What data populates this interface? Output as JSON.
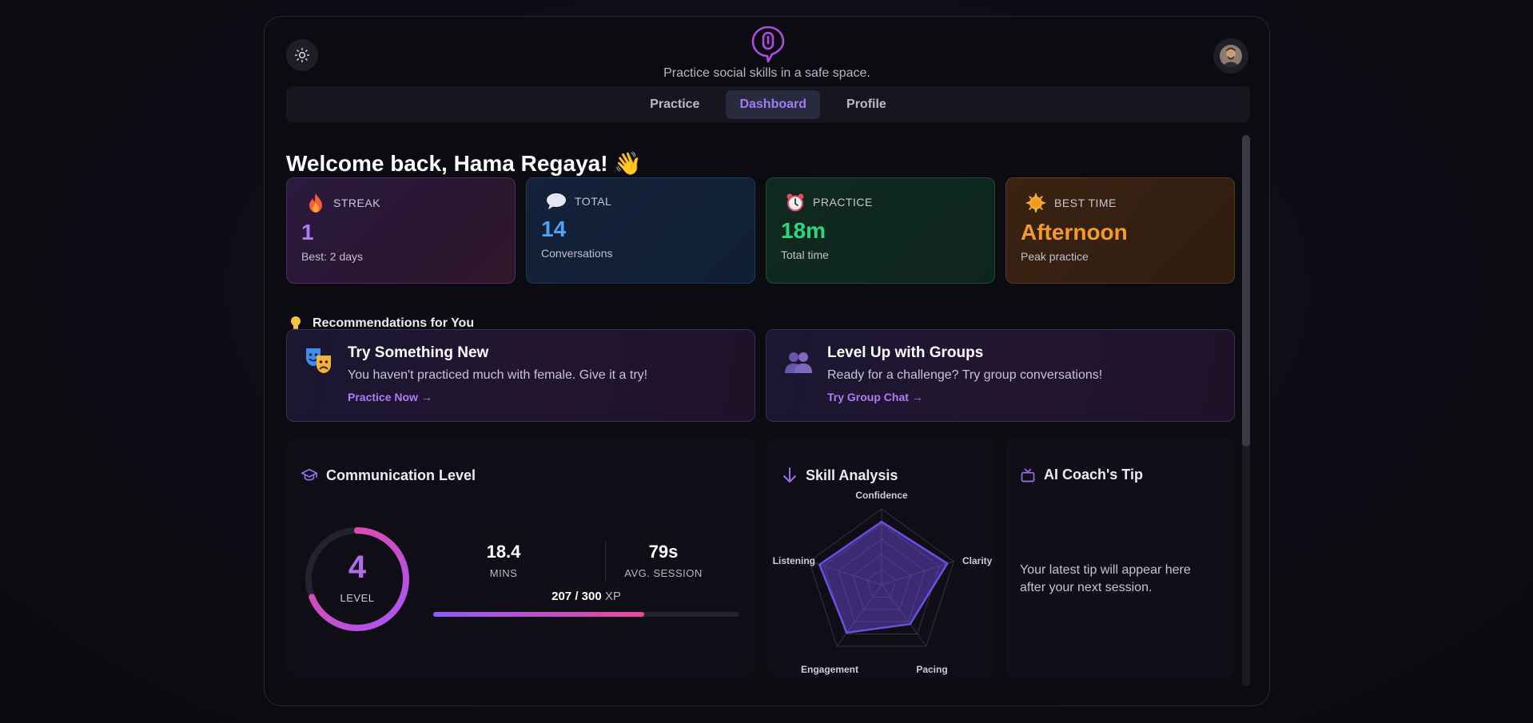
{
  "header": {
    "tagline": "Practice social skills in a safe space.",
    "theme_icon": "sun-icon",
    "logo_icon": "microphone-speech-bubble-icon"
  },
  "tabs": [
    {
      "label": "Practice",
      "active": false
    },
    {
      "label": "Dashboard",
      "active": true
    },
    {
      "label": "Profile",
      "active": false
    }
  ],
  "welcome": "Welcome back, Hama Regaya! 👋",
  "stats": [
    {
      "icon": "flame-icon",
      "label": "STREAK",
      "value": "1",
      "sub": "Best: 2 days",
      "color": "#b178f7"
    },
    {
      "icon": "speech-bubble-icon",
      "label": "TOTAL",
      "value": "14",
      "sub": "Conversations",
      "color": "#4fa3f7"
    },
    {
      "icon": "alarm-clock-icon",
      "label": "PRACTICE",
      "value": "18m",
      "sub": "Total time",
      "color": "#2fd67e"
    },
    {
      "icon": "sun-icon",
      "label": "BEST TIME",
      "value": "Afternoon",
      "sub": "Peak practice",
      "color": "#f59a2a"
    }
  ],
  "recommendations": {
    "title": "Recommendations for You",
    "icon": "lightbulb-icon",
    "items": [
      {
        "icon": "theater-masks-icon",
        "title": "Try Something New",
        "desc": "You haven't practiced much with female. Give it a try!",
        "link": "Practice Now →"
      },
      {
        "icon": "group-people-icon",
        "title": "Level Up with Groups",
        "desc": "Ready for a challenge? Try group conversations!",
        "link": "Try Group Chat →"
      }
    ]
  },
  "level": {
    "title": "Communication Level",
    "icon": "graduation-cap-icon",
    "level": "4",
    "level_label": "LEVEL",
    "ring_fraction": 0.69,
    "mins": "18.4",
    "mins_label": "MINS",
    "avg_session": "79s",
    "avg_session_label": "AVG. SESSION",
    "xp_text": "207 / 300",
    "xp_unit": "XP",
    "xp_fraction": 0.69
  },
  "skill": {
    "title": "Skill Analysis",
    "icon": "arrow-down-icon",
    "axes": [
      "Confidence",
      "Clarity",
      "Pacing",
      "Engagement",
      "Listening"
    ],
    "values": [
      0.83,
      0.91,
      0.64,
      0.78,
      0.86
    ],
    "accent": "#6d4fe0"
  },
  "tip": {
    "title": "AI Coach's Tip",
    "icon": "tv-icon",
    "text": "Your latest tip will appear here after your next session."
  }
}
